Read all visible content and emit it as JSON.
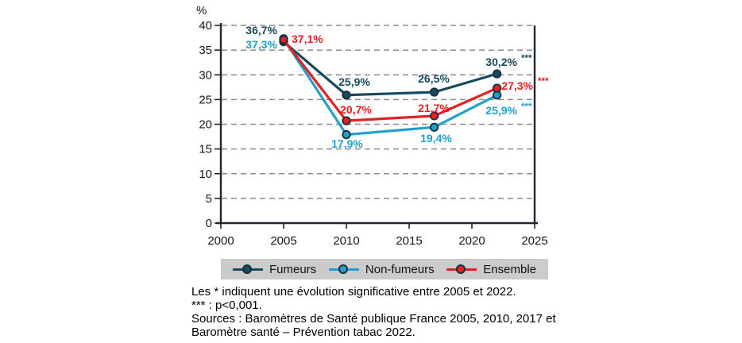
{
  "chart_data": {
    "type": "line",
    "title": "",
    "ylabel": "%",
    "xlabel": "",
    "x": [
      2005,
      2010,
      2017,
      2022
    ],
    "x_ticks": [
      2000,
      2005,
      2010,
      2015,
      2020,
      2025
    ],
    "xlim": [
      2000,
      2025
    ],
    "y_ticks": [
      0,
      5,
      10,
      15,
      20,
      25,
      30,
      35,
      40
    ],
    "ylim": [
      0,
      40
    ],
    "grid": "horizontal dashed",
    "legend_position": "bottom",
    "series": [
      {
        "name": "Fumeurs",
        "color": "#17495f",
        "values": [
          36.7,
          25.9,
          26.5,
          30.2
        ],
        "point_labels": [
          "36,7%",
          "25,9%",
          "26,5%",
          "30,2%"
        ],
        "significance_last_point": "***"
      },
      {
        "name": "Non-fumeurs",
        "color": "#249fca",
        "values": [
          37.3,
          17.9,
          19.4,
          25.9
        ],
        "point_labels": [
          "37,3%",
          "17,9%",
          "19,4%",
          "25,9%"
        ],
        "significance_last_point": "***"
      },
      {
        "name": "Ensemble",
        "color": "#e32124",
        "values": [
          37.1,
          20.7,
          21.7,
          27.3
        ],
        "point_labels": [
          "37,1%",
          "20,7%",
          "21,7%",
          "27,3%"
        ],
        "significance_last_point": "***"
      }
    ],
    "colors": {
      "axis": "#20262e",
      "grid": "#8c8c8c",
      "tick_text": "#15181c",
      "marker_stroke": "#16303f",
      "legend_background": "#cbcbcb"
    }
  },
  "footer": {
    "lines": [
      "Les * indiquent une évolution significative entre 2005 et 2022.",
      "*** : p<0,001.",
      "Sources : Baromètres de Santé publique France 2005, 2010, 2017 et",
      "Baromètre santé – Prévention tabac 2022."
    ]
  }
}
